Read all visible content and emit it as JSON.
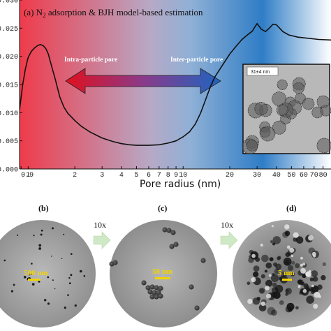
{
  "chart_data": {
    "type": "line",
    "title_prefix": "(a) N",
    "title_sub": "2",
    "title_rest": " adsorption & BJH model-based estimation",
    "xlabel": "Pore radius (nm)",
    "x_scale": "log",
    "xlim": [
      0.88,
      90
    ],
    "ylim": [
      0.0,
      0.03
    ],
    "x_tick_labels": [
      "0.9",
      "1",
      "2",
      "3",
      "4",
      "5",
      "6",
      "7",
      "8",
      "9",
      "10",
      "20",
      "30",
      "40",
      "50",
      "60",
      "70",
      "80"
    ],
    "y_tick_labels": [
      "0.000",
      "0.005",
      "0.010",
      "0.015",
      "0.020",
      "0.025",
      "0.030"
    ],
    "annotations": [
      "Intra-particle pore",
      "Inter-particle pore"
    ],
    "inset_label": "31±4 nm",
    "background": {
      "left_color": "#ef3b4a",
      "right_color": "#2f7dc6"
    },
    "series": [
      {
        "x": [
          0.88,
          0.92,
          0.96,
          1.0,
          1.05,
          1.1,
          1.15,
          1.2,
          1.25,
          1.3,
          1.35,
          1.4,
          1.5,
          1.6,
          1.7,
          1.8,
          2.0,
          2.2,
          2.5,
          2.8,
          3.0,
          3.5,
          4.0,
          4.5,
          5.0,
          5.5,
          6.0,
          7.0,
          8.0,
          9.0,
          10.0,
          11.0,
          12.0,
          13.0,
          14.0,
          15.0,
          16.0,
          18.0,
          20.0,
          22.0,
          24.0,
          26.0,
          28.0,
          29.0,
          30.0,
          32.0,
          34.0,
          36.0,
          38.0,
          40.0,
          44.0,
          48.0,
          55.0,
          65.0,
          75.0,
          90.0
        ],
        "y": [
          0.0105,
          0.0148,
          0.0178,
          0.0198,
          0.0209,
          0.0215,
          0.0219,
          0.0221,
          0.0219,
          0.0214,
          0.0204,
          0.0188,
          0.0158,
          0.0128,
          0.011,
          0.0099,
          0.0086,
          0.0076,
          0.0066,
          0.0059,
          0.0055,
          0.0049,
          0.0045,
          0.0043,
          0.0042,
          0.0042,
          0.0042,
          0.0043,
          0.0046,
          0.005,
          0.0057,
          0.0066,
          0.008,
          0.01,
          0.0124,
          0.0146,
          0.0163,
          0.0185,
          0.0204,
          0.0218,
          0.023,
          0.0238,
          0.0245,
          0.0252,
          0.0258,
          0.0248,
          0.0244,
          0.025,
          0.0257,
          0.0256,
          0.0244,
          0.0238,
          0.0234,
          0.0232,
          0.023,
          0.0229
        ]
      }
    ]
  },
  "micrographs": [
    {
      "letter": "(b)",
      "scale_label": "500 nm"
    },
    {
      "letter": "(c)",
      "scale_label": "50 nm"
    },
    {
      "letter": "(d)",
      "scale_label": "5 nm"
    }
  ],
  "zoom_labels": [
    "10x",
    "10x"
  ]
}
